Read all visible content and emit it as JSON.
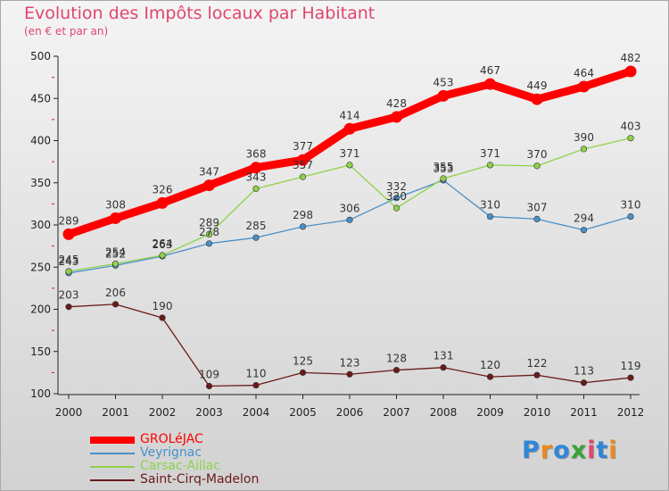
{
  "title": "Evolution des Impôts locaux par Habitant",
  "subtitle": "(en € et par an)",
  "brand": "Proxiti",
  "chart_data": {
    "type": "line",
    "title": "Evolution des Impôts locaux par Habitant",
    "subtitle": "(en € et par an)",
    "xlabel": "",
    "ylabel": "",
    "x": [
      "2000",
      "2001",
      "2002",
      "2003",
      "2004",
      "2005",
      "2006",
      "2007",
      "2008",
      "2009",
      "2010",
      "2011",
      "2012"
    ],
    "ylim": [
      100,
      500
    ],
    "yticks": [
      "100",
      "150",
      "200",
      "250",
      "300",
      "350",
      "400",
      "450",
      "500"
    ],
    "legend_position": "bottom-left",
    "series": [
      {
        "name": "GROLéJAC",
        "color": "#ff0000",
        "values": [
          289,
          308,
          326,
          347,
          368,
          377,
          414,
          428,
          453,
          467,
          449,
          464,
          482
        ]
      },
      {
        "name": "Veyrignac",
        "color": "#4a90c8",
        "values": [
          243,
          252,
          263,
          278,
          285,
          298,
          306,
          332,
          353,
          310,
          307,
          294,
          310
        ]
      },
      {
        "name": "Carsac-Aillac",
        "color": "#8fd24a",
        "values": [
          245,
          254,
          264,
          289,
          343,
          357,
          371,
          320,
          355,
          371,
          370,
          390,
          403
        ]
      },
      {
        "name": "Saint-Cirq-Madelon",
        "color": "#6b1a1a",
        "values": [
          203,
          206,
          190,
          109,
          110,
          125,
          123,
          128,
          131,
          120,
          122,
          113,
          119
        ]
      }
    ]
  }
}
